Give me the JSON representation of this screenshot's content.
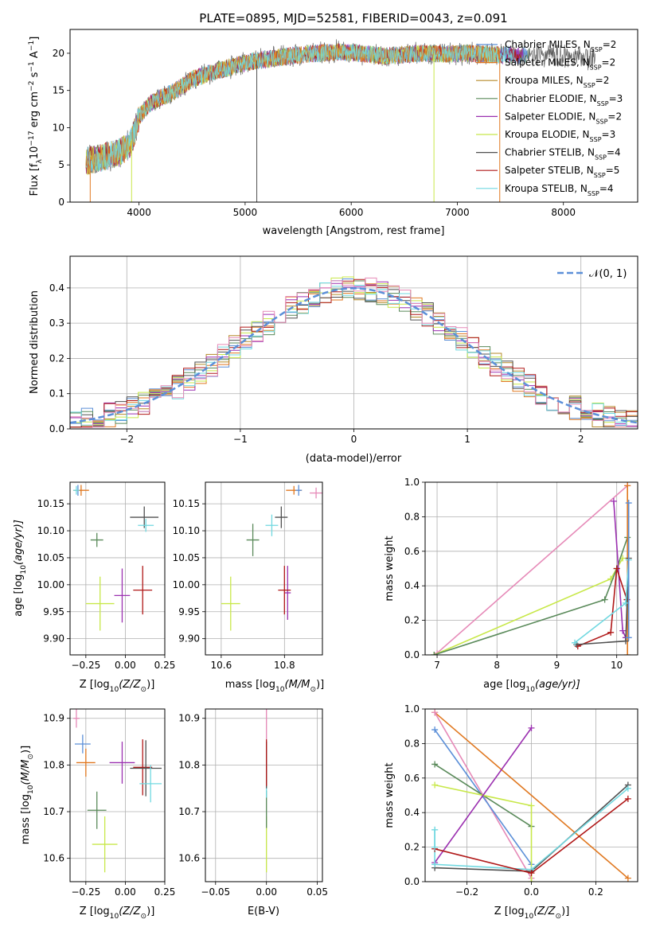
{
  "figure": {
    "title": "PLATE=0895, MJD=52581, FIBERID=0043, z=0.091"
  },
  "colors": {
    "models": [
      "#5b8fd8",
      "#e07820",
      "#b58a2a",
      "#5a8a5a",
      "#9b30b0",
      "#c8e84a",
      "#505050",
      "#b01818",
      "#70d8e0"
    ],
    "extra_pink": "#e68ab8",
    "gaussian": "#5b8fd8",
    "grid": "#b0b0b0"
  },
  "legend_spectrum": [
    {
      "model": "Chabrier MILES",
      "n": "2"
    },
    {
      "model": "Salpeter MILES",
      "n": "2"
    },
    {
      "model": "Kroupa MILES",
      "n": "2"
    },
    {
      "model": "Chabrier ELODIE",
      "n": "3"
    },
    {
      "model": "Salpeter ELODIE",
      "n": "2"
    },
    {
      "model": "Kroupa ELODIE",
      "n": "3"
    },
    {
      "model": "Chabrier STELIB",
      "n": "4"
    },
    {
      "model": "Salpeter STELIB",
      "n": "5"
    },
    {
      "model": "Kroupa STELIB",
      "n": "4"
    }
  ],
  "legend_hist": {
    "label": "𝒩(0, 1)"
  },
  "chart_data": [
    {
      "id": "spectrum",
      "type": "line",
      "xlabel": "wavelength [Angstrom, rest frame]",
      "ylabel_parts": [
        "Flux [f",
        "λ",
        "10",
        "−17",
        " erg cm",
        "−2",
        " s",
        "−1",
        " A",
        "−1",
        "]"
      ],
      "xlim": [
        3350,
        8700
      ],
      "ylim": [
        0,
        23.2
      ],
      "xticks": [
        4000,
        5000,
        6000,
        7000,
        8000
      ],
      "yticks": [
        0,
        5,
        10,
        15,
        20
      ],
      "continuum": {
        "x": [
          3500,
          3600,
          3700,
          3800,
          3900,
          3950,
          4000,
          4100,
          4200,
          4300,
          4400,
          4500,
          4700,
          4900,
          5100,
          5300,
          5500,
          5700,
          5900,
          6100,
          6300,
          6500,
          6700,
          6900,
          7100,
          7300,
          7500,
          7700,
          7900,
          8100,
          8300
        ],
        "y": [
          5.5,
          5.8,
          6.2,
          6.5,
          7.5,
          9.0,
          11.5,
          13.2,
          14.0,
          14.6,
          15.5,
          16.5,
          17.5,
          18.3,
          19.0,
          19.4,
          19.8,
          20.0,
          20.2,
          20.0,
          19.6,
          19.8,
          20.0,
          19.9,
          20.0,
          19.8,
          19.8,
          19.6,
          19.5,
          19.5,
          19.4
        ]
      },
      "dropouts": [
        {
          "x": 3540,
          "model": 1
        },
        {
          "x": 3930,
          "model": 5
        },
        {
          "x": 5110,
          "model": 6
        },
        {
          "x": 6780,
          "model": 5
        },
        {
          "x": 7400,
          "model": 1
        }
      ]
    },
    {
      "id": "residual_hist",
      "type": "histogram",
      "xlabel": "(data-model)/error",
      "ylabel": "Normed distribution",
      "xlim": [
        -2.5,
        2.5
      ],
      "ylim": [
        0,
        0.49
      ],
      "xticks": [
        -2,
        -1,
        0,
        1,
        2
      ],
      "yticks": [
        0.0,
        0.1,
        0.2,
        0.3,
        0.4
      ],
      "bin_width": 0.1
    },
    {
      "id": "age_vs_Z",
      "type": "errorbar",
      "xlabel_parts": [
        "Z [log",
        "10",
        "(Z/Z",
        "⊙",
        ")]"
      ],
      "ylabel_parts": [
        "age  [log",
        "10",
        "(age/yr)]"
      ],
      "xlim": [
        -0.35,
        0.25
      ],
      "ylim": [
        9.87,
        10.19
      ],
      "xticks": [
        -0.25,
        0.0,
        0.25
      ],
      "yticks": [
        9.9,
        9.95,
        10.0,
        10.05,
        10.1,
        10.15
      ],
      "points": [
        {
          "model": 0,
          "x": -0.3,
          "xe": 0.02,
          "y": 10.175,
          "ye": 0.01
        },
        {
          "model": 1,
          "x": -0.28,
          "xe": 0.05,
          "y": 10.175,
          "ye": 0.01
        },
        {
          "model": 8,
          "x": -0.31,
          "xe": 0.02,
          "y": 10.175,
          "ye": 0.008
        },
        {
          "model": 3,
          "x": -0.18,
          "xe": 0.04,
          "y": 10.083,
          "ye": 0.013
        },
        {
          "model": 6,
          "x": 0.12,
          "xe": 0.09,
          "y": 10.125,
          "ye": 0.02
        },
        {
          "model": 8,
          "x": 0.13,
          "xe": 0.05,
          "y": 10.11,
          "ye": 0.012
        },
        {
          "model": 5,
          "x": -0.16,
          "xe": 0.09,
          "y": 9.965,
          "ye": 0.05
        },
        {
          "model": 4,
          "x": -0.02,
          "xe": 0.05,
          "y": 9.98,
          "ye": 0.05
        },
        {
          "model": 7,
          "x": 0.11,
          "xe": 0.06,
          "y": 9.99,
          "ye": 0.045
        }
      ]
    },
    {
      "id": "age_vs_mass",
      "type": "errorbar",
      "xlabel_parts": [
        "mass [log",
        "10",
        "(M/M",
        "⊙",
        ")]"
      ],
      "ylabel_parts": [],
      "xlim": [
        10.55,
        10.92
      ],
      "ylim": [
        9.87,
        10.19
      ],
      "xticks": [
        10.6,
        10.8
      ],
      "yticks": [
        9.9,
        9.95,
        10.0,
        10.05,
        10.1,
        10.15
      ],
      "points": [
        {
          "model": 1,
          "x": 10.83,
          "xe": 0.025,
          "y": 10.175,
          "ye": 0.008
        },
        {
          "model": 0,
          "x": 10.845,
          "xe": 0.01,
          "y": 10.175,
          "ye": 0.01
        },
        {
          "model": 9,
          "x": 10.9,
          "xe": 0.02,
          "y": 10.17,
          "ye": 0.01
        },
        {
          "model": 8,
          "x": 10.76,
          "xe": 0.02,
          "y": 10.11,
          "ye": 0.02
        },
        {
          "model": 6,
          "x": 10.79,
          "xe": 0.02,
          "y": 10.125,
          "ye": 0.02
        },
        {
          "model": 3,
          "x": 10.7,
          "xe": 0.02,
          "y": 10.083,
          "ye": 0.03
        },
        {
          "model": 4,
          "x": 10.81,
          "xe": 0.01,
          "y": 9.985,
          "ye": 0.05
        },
        {
          "model": 7,
          "x": 10.8,
          "xe": 0.02,
          "y": 9.99,
          "ye": 0.045
        },
        {
          "model": 5,
          "x": 10.63,
          "xe": 0.03,
          "y": 9.965,
          "ye": 0.05
        }
      ]
    },
    {
      "id": "weight_vs_age",
      "type": "line",
      "xlabel_parts": [
        "age  [log",
        "10",
        "(age/yr)]"
      ],
      "ylabel": "mass weight",
      "xlim": [
        6.8,
        10.35
      ],
      "ylim": [
        0,
        1.0
      ],
      "xticks": [
        7,
        8,
        9,
        10
      ],
      "yticks": [
        0.0,
        0.2,
        0.4,
        0.6,
        0.8,
        1.0
      ],
      "series": [
        {
          "model": 9,
          "x": [
            7.0,
            10.18
          ],
          "y": [
            0.01,
            0.98
          ]
        },
        {
          "model": 5,
          "x": [
            6.95,
            9.9,
            10.1
          ],
          "y": [
            0.0,
            0.44,
            0.56
          ]
        },
        {
          "model": 3,
          "x": [
            6.95,
            9.8,
            10.0,
            10.18
          ],
          "y": [
            0.0,
            0.32,
            0.5,
            0.68
          ]
        },
        {
          "model": 1,
          "x": [
            10.18,
            10.18
          ],
          "y": [
            0.0,
            0.98
          ]
        },
        {
          "model": 4,
          "x": [
            9.95,
            10.1,
            10.15
          ],
          "y": [
            0.89,
            0.14,
            0.1
          ]
        },
        {
          "model": 7,
          "x": [
            9.35,
            9.9,
            10.0,
            10.17
          ],
          "y": [
            0.05,
            0.13,
            0.5,
            0.32
          ]
        },
        {
          "model": 6,
          "x": [
            9.33,
            10.15,
            10.2
          ],
          "y": [
            0.06,
            0.08,
            0.56
          ]
        },
        {
          "model": 8,
          "x": [
            9.3,
            10.15,
            10.2
          ],
          "y": [
            0.07,
            0.3,
            0.55
          ]
        },
        {
          "model": 0,
          "x": [
            10.2,
            10.2
          ],
          "y": [
            0.1,
            0.88
          ]
        }
      ]
    },
    {
      "id": "mass_vs_Z",
      "type": "errorbar",
      "xlabel_parts": [
        "Z [log",
        "10",
        "(Z/Z",
        "⊙",
        ")]"
      ],
      "ylabel_parts": [
        "mass [log",
        "10",
        "(M/M",
        "⊙",
        ")]"
      ],
      "xlim": [
        -0.35,
        0.25
      ],
      "ylim": [
        10.55,
        10.92
      ],
      "xticks": [
        -0.25,
        0.0,
        0.25
      ],
      "yticks": [
        10.6,
        10.7,
        10.8,
        10.9
      ],
      "points": [
        {
          "model": 9,
          "x": -0.31,
          "xe": 0.02,
          "y": 10.9,
          "ye": 0.02
        },
        {
          "model": 0,
          "x": -0.27,
          "xe": 0.05,
          "y": 10.845,
          "ye": 0.02
        },
        {
          "model": 1,
          "x": -0.25,
          "xe": 0.06,
          "y": 10.805,
          "ye": 0.03
        },
        {
          "model": 4,
          "x": -0.02,
          "xe": 0.08,
          "y": 10.805,
          "ye": 0.045
        },
        {
          "model": 7,
          "x": 0.11,
          "xe": 0.06,
          "y": 10.795,
          "ye": 0.06
        },
        {
          "model": 6,
          "x": 0.13,
          "xe": 0.1,
          "y": 10.793,
          "ye": 0.06
        },
        {
          "model": 8,
          "x": 0.16,
          "xe": 0.07,
          "y": 10.76,
          "ye": 0.04
        },
        {
          "model": 3,
          "x": -0.18,
          "xe": 0.06,
          "y": 10.703,
          "ye": 0.04
        },
        {
          "model": 5,
          "x": -0.13,
          "xe": 0.08,
          "y": 10.63,
          "ye": 0.06
        }
      ]
    },
    {
      "id": "mass_vs_ebv",
      "type": "errorbar",
      "xlabel": "E(B-V)",
      "xlim": [
        -0.06,
        0.055
      ],
      "ylim": [
        10.55,
        10.92
      ],
      "xticks": [
        -0.05,
        0.0,
        0.05
      ],
      "yticks": [
        10.6,
        10.7,
        10.8,
        10.9
      ],
      "points": [
        {
          "model": 9,
          "x": 0.0,
          "xe": 0.0,
          "y": 10.895,
          "ye": 0.04
        },
        {
          "model": 5,
          "x": 0.0,
          "xe": 0.0,
          "y": 10.63,
          "ye": 0.06
        },
        {
          "model": 3,
          "x": 0.0,
          "xe": 0.0,
          "y": 10.705,
          "ye": 0.04
        },
        {
          "model": 8,
          "x": 0.0,
          "xe": 0.0,
          "y": 10.76,
          "ye": 0.03
        },
        {
          "model": 6,
          "x": 0.0,
          "xe": 0.0,
          "y": 10.8,
          "ye": 0.05
        },
        {
          "model": 7,
          "x": 0.0,
          "xe": 0.0,
          "y": 10.805,
          "ye": 0.05
        }
      ]
    },
    {
      "id": "weight_vs_Z",
      "type": "line",
      "xlabel_parts": [
        "Z [log",
        "10",
        "(Z/Z",
        "⊙",
        ")]"
      ],
      "ylabel": "mass weight",
      "xlim": [
        -0.33,
        0.33
      ],
      "ylim": [
        0,
        1.0
      ],
      "xticks": [
        -0.2,
        0.0,
        0.2
      ],
      "yticks": [
        0.0,
        0.2,
        0.4,
        0.6,
        0.8,
        1.0
      ],
      "series": [
        {
          "model": 1,
          "x": [
            -0.3,
            0.3
          ],
          "y": [
            0.98,
            0.02
          ]
        },
        {
          "model": 9,
          "x": [
            -0.3,
            0.0
          ],
          "y": [
            0.98,
            0.02
          ]
        },
        {
          "model": 0,
          "x": [
            -0.3,
            0.0
          ],
          "y": [
            0.88,
            0.1
          ]
        },
        {
          "model": 3,
          "x": [
            -0.3,
            0.0
          ],
          "y": [
            0.68,
            0.32
          ]
        },
        {
          "model": 5,
          "x": [
            -0.3,
            0.0,
            0.0
          ],
          "y": [
            0.56,
            0.44,
            0.0
          ]
        },
        {
          "model": 4,
          "x": [
            -0.3,
            0.0
          ],
          "y": [
            0.11,
            0.89
          ]
        },
        {
          "model": 6,
          "x": [
            -0.3,
            0.0,
            0.3
          ],
          "y": [
            0.08,
            0.06,
            0.56
          ]
        },
        {
          "model": 8,
          "x": [
            -0.3,
            -0.3,
            0.0,
            0.3
          ],
          "y": [
            0.3,
            0.1,
            0.07,
            0.54
          ]
        },
        {
          "model": 7,
          "x": [
            -0.3,
            0.0,
            0.3
          ],
          "y": [
            0.19,
            0.05,
            0.48
          ]
        },
        {
          "model": 8,
          "x": [
            -0.3,
            -0.3
          ],
          "y": [
            0.2,
            0.3
          ]
        }
      ]
    }
  ]
}
